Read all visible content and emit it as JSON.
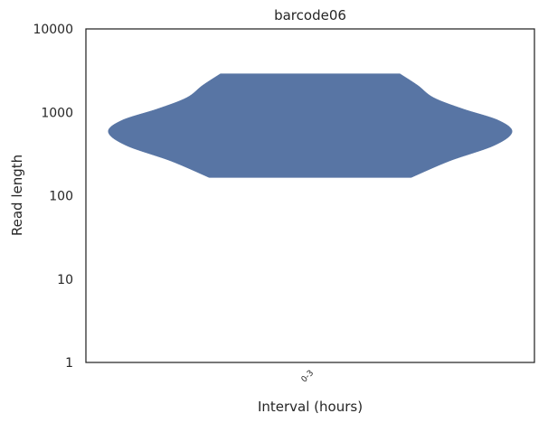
{
  "chart_data": {
    "type": "violin",
    "title": "barcode06",
    "xlabel": "Interval (hours)",
    "ylabel": "Read length",
    "yscale": "log",
    "ylim": [
      1,
      10000
    ],
    "yticks": [
      {
        "value": 1,
        "label": "1"
      },
      {
        "value": 10,
        "label": "10"
      },
      {
        "value": 100,
        "label": "100"
      },
      {
        "value": 1000,
        "label": "1000"
      },
      {
        "value": 10000,
        "label": "10000"
      }
    ],
    "categories": [
      "0-3"
    ],
    "series": [
      {
        "category": "0-3",
        "color": "#5875a4",
        "min": 165,
        "max": 2900,
        "density_profile": [
          {
            "y": 165,
            "half_width": 0.45
          },
          {
            "y": 260,
            "half_width": 0.62
          },
          {
            "y": 400,
            "half_width": 0.82
          },
          {
            "y": 580,
            "half_width": 0.9
          },
          {
            "y": 800,
            "half_width": 0.84
          },
          {
            "y": 1100,
            "half_width": 0.68
          },
          {
            "y": 1500,
            "half_width": 0.55
          },
          {
            "y": 2100,
            "half_width": 0.48
          },
          {
            "y": 2900,
            "half_width": 0.4
          }
        ]
      }
    ],
    "grid": false,
    "legend": "none"
  }
}
